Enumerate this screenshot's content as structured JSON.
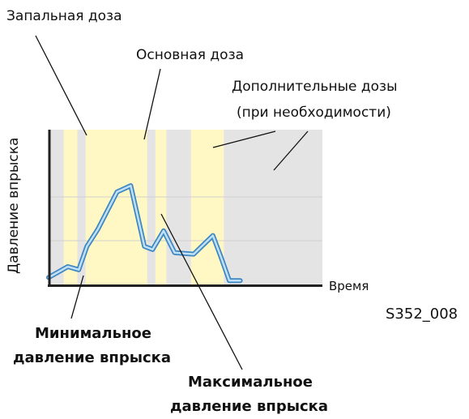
{
  "labels": {
    "pilot_dose": "Запальная доза",
    "main_dose": "Основная доза",
    "additional_doses_line1": "Дополнительные дозы",
    "additional_doses_line2": "(при необходимости)",
    "y_axis": "Давление впрыска",
    "x_axis": "Время",
    "figure_code": "S352_008",
    "min_pressure_line1": "Минимальное",
    "min_pressure_line2": "давление впрыска",
    "max_pressure_line1": "Максимальное",
    "max_pressure_line2": "давление впрыска"
  },
  "colors": {
    "background_band": "#e4e4e4",
    "dose_band": "#fff8c4",
    "curve_outer": "#3f87c2",
    "curve_inner": "#bfe0f5",
    "axis": "#222222"
  },
  "dose_bands": [
    {
      "name": "pilot",
      "start": 0.055,
      "end": 0.105
    },
    {
      "name": "main",
      "start": 0.135,
      "end": 0.36
    },
    {
      "name": "additional-1",
      "start": 0.39,
      "end": 0.43
    },
    {
      "name": "additional-2",
      "start": 0.52,
      "end": 0.64
    }
  ],
  "pressure_curve": {
    "t": [
      0.0,
      0.07,
      0.11,
      0.14,
      0.18,
      0.25,
      0.3,
      0.35,
      0.38,
      0.42,
      0.46,
      0.53,
      0.6,
      0.63,
      0.66,
      0.7
    ],
    "p": [
      0.05,
      0.12,
      0.1,
      0.25,
      0.36,
      0.6,
      0.64,
      0.25,
      0.23,
      0.35,
      0.21,
      0.2,
      0.32,
      0.18,
      0.03,
      0.03
    ]
  }
}
